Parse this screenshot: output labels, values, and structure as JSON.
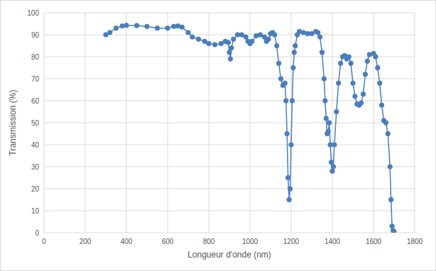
{
  "chart_data": {
    "type": "line",
    "marker": "circle",
    "color": "#4a7ebb",
    "grid": true,
    "x_label": "Longueur d'onde (nm)",
    "y_label": "Transmission (%)",
    "x": [
      300,
      320,
      350,
      380,
      400,
      450,
      500,
      550,
      600,
      630,
      650,
      670,
      700,
      720,
      750,
      780,
      800,
      830,
      860,
      880,
      895,
      900,
      905,
      910,
      920,
      940,
      960,
      980,
      990,
      1000,
      1010,
      1030,
      1050,
      1070,
      1080,
      1090,
      1100,
      1110,
      1120,
      1130,
      1140,
      1150,
      1160,
      1170,
      1175,
      1180,
      1185,
      1190,
      1195,
      1200,
      1205,
      1210,
      1215,
      1220,
      1230,
      1240,
      1260,
      1280,
      1300,
      1320,
      1330,
      1340,
      1350,
      1360,
      1365,
      1370,
      1375,
      1380,
      1385,
      1390,
      1395,
      1400,
      1405,
      1410,
      1420,
      1430,
      1440,
      1450,
      1460,
      1470,
      1480,
      1490,
      1500,
      1510,
      1520,
      1530,
      1540,
      1550,
      1560,
      1570,
      1580,
      1600,
      1610,
      1620,
      1630,
      1640,
      1650,
      1660,
      1670,
      1680,
      1685,
      1690,
      1695,
      1700
    ],
    "values": [
      90,
      91,
      93,
      94,
      94.3,
      94.2,
      93.8,
      93,
      93,
      93.8,
      94,
      93.5,
      91,
      89,
      88,
      87,
      86,
      85.5,
      86,
      87,
      86.5,
      82,
      79,
      84,
      88,
      90,
      90,
      89,
      87,
      86,
      87,
      89.5,
      90,
      89,
      87,
      88,
      90.5,
      91,
      90,
      85,
      77,
      70,
      67,
      68,
      60,
      45,
      25,
      15,
      20,
      40,
      60,
      75,
      82,
      85,
      90,
      91.5,
      91,
      90.5,
      90.5,
      91.5,
      91,
      89,
      82,
      70,
      60,
      52,
      45,
      46,
      50,
      40,
      32,
      28,
      30,
      40,
      55,
      68,
      77,
      80,
      80.5,
      79,
      80,
      77,
      68,
      62,
      58.5,
      58,
      59,
      63,
      72,
      78,
      81,
      81.5,
      80,
      75,
      68,
      58,
      51,
      50,
      45,
      30,
      15,
      3,
      1,
      0.5
    ],
    "xlim": [
      0,
      1800
    ],
    "xticks": [
      0,
      200,
      400,
      600,
      800,
      1000,
      1200,
      1400,
      1600,
      1800
    ],
    "ylim": [
      0,
      100
    ],
    "yticks": [
      0,
      10,
      20,
      30,
      40,
      50,
      60,
      70,
      80,
      90,
      100
    ]
  }
}
